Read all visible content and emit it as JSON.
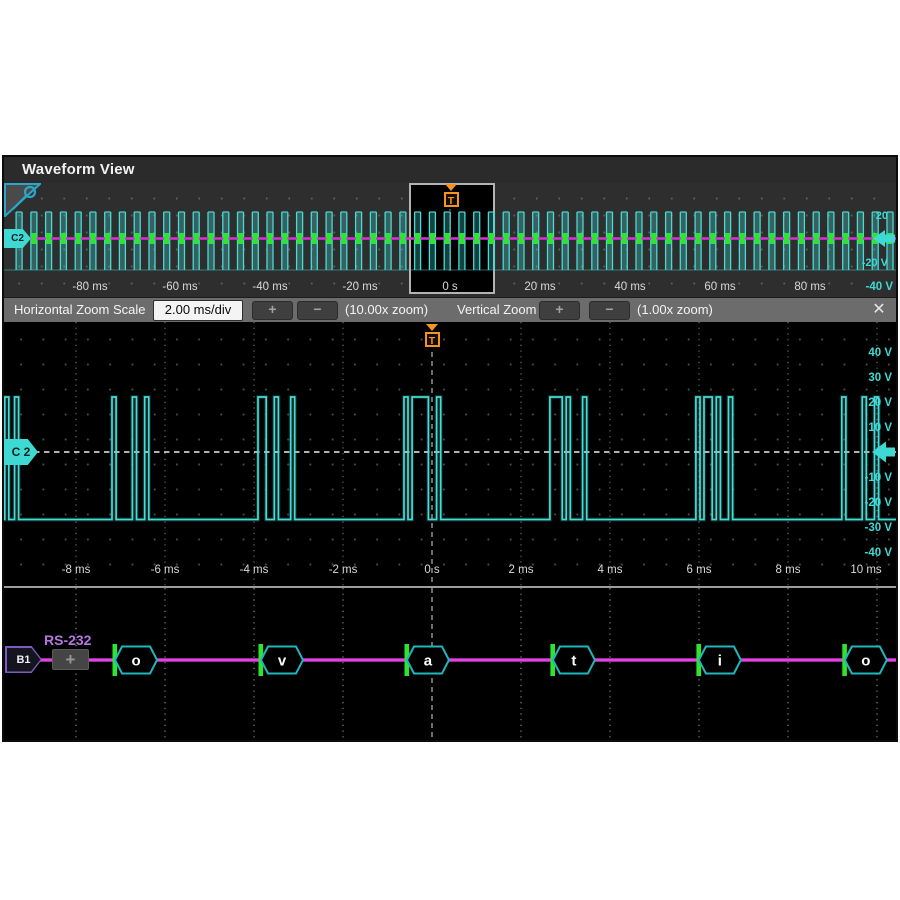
{
  "window": {
    "title": "Waveform View"
  },
  "overview": {
    "channel_badge": "C2",
    "trigger_label": "T",
    "time_ticks": [
      {
        "ms": -80,
        "label": "-80 ms"
      },
      {
        "ms": -60,
        "label": "-60 ms"
      },
      {
        "ms": -40,
        "label": "-40 ms"
      },
      {
        "ms": -20,
        "label": "-20 ms"
      },
      {
        "ms": 0,
        "label": "0 s"
      },
      {
        "ms": 20,
        "label": "20 ms"
      },
      {
        "ms": 40,
        "label": "40 ms"
      },
      {
        "ms": 60,
        "label": "60 ms"
      },
      {
        "ms": 80,
        "label": "80 ms"
      }
    ],
    "axis_end_label": "-40 V",
    "right_voltage_labels": [
      {
        "v": 20,
        "label": "20"
      },
      {
        "v": -20,
        "label": "-20 V"
      },
      {
        "v": -40,
        "label": "-40 V"
      }
    ]
  },
  "toolbar": {
    "horizontal_label": "Horizontal Zoom Scale",
    "horizontal_scale": "2.00 ms/div",
    "horizontal_readout": "(10.00x zoom)",
    "vertical_label": "Vertical Zoom",
    "vertical_readout": "(1.00x zoom)",
    "plus_label": "+",
    "minus_label": "−",
    "close_label": "✕"
  },
  "main_view": {
    "channel_badge": "C 2",
    "trigger_label": "T",
    "time_ticks": [
      {
        "ms": -8,
        "label": "-8 ms"
      },
      {
        "ms": -6,
        "label": "-6 ms"
      },
      {
        "ms": -4,
        "label": "-4 ms"
      },
      {
        "ms": -2,
        "label": "-2 ms"
      },
      {
        "ms": 0,
        "label": "0 s"
      },
      {
        "ms": 2,
        "label": "2 ms"
      },
      {
        "ms": 4,
        "label": "4 ms"
      },
      {
        "ms": 6,
        "label": "6 ms"
      },
      {
        "ms": 8,
        "label": "8 ms"
      },
      {
        "ms": 10,
        "label": "10 ms"
      }
    ],
    "voltage_ticks": [
      {
        "v": 40,
        "label": "40 V"
      },
      {
        "v": 30,
        "label": "30 V"
      },
      {
        "v": 20,
        "label": "20 V"
      },
      {
        "v": 10,
        "label": "10 V"
      },
      {
        "v": -10,
        "label": "-10 V"
      },
      {
        "v": -20,
        "label": "-20 V"
      },
      {
        "v": -30,
        "label": "-30 V"
      },
      {
        "v": -40,
        "label": "-40 V"
      }
    ]
  },
  "bus": {
    "badge": "B1",
    "protocol": "RS-232",
    "add_label": "+",
    "decoded_chars": [
      "o",
      "v",
      "a",
      "t",
      "i",
      "o"
    ]
  },
  "signal": {
    "type": "uart-rs232",
    "first_byte_start_ms": -7.19,
    "byte_period_ms": 3.28,
    "bit_ms": 0.0917,
    "high_v": 22,
    "low_v": -27,
    "edge_pulses_ms": [
      [
        -9.6,
        -9.51
      ],
      [
        -9.38,
        -9.29
      ]
    ],
    "overview_byte_k_range": [
      -31,
      33
    ]
  },
  "colors": {
    "trace": "#45dcd6",
    "trace_fill": "rgba(69,220,214,0.30)",
    "bus_line": "#d335d3",
    "decode_border": "#1fb6bd",
    "frame_marker": "#2fe42f",
    "trigger": "#f7941d",
    "channel": "#3fd9d4",
    "b1_border": "#7e5bc4",
    "rs232_text": "#b678e0",
    "tick_text": "#d9d9d9"
  }
}
